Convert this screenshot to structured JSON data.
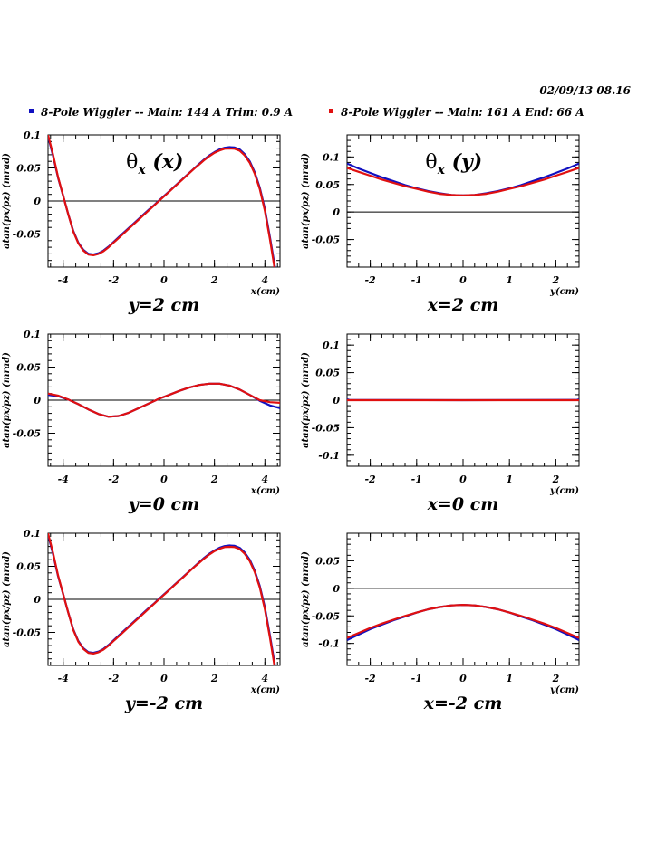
{
  "date": "02/09/13   08.16",
  "legend": [
    {
      "label": "8-Pole Wiggler --  Main: 144 A    Trim: 0.9 A",
      "color": "#1010c0"
    },
    {
      "label": "8-Pole Wiggler --  Main: 161 A    End: 66 A",
      "color": "#e01010"
    }
  ],
  "chart_data": [
    {
      "type": "line",
      "title": "θx (x)",
      "caption": "y=2 cm",
      "xlabel": "x(cm)",
      "ylabel": "atan(px/pz) (mrad)",
      "xlim": [
        -4.6,
        4.6
      ],
      "ylim": [
        -0.1,
        0.1
      ],
      "xticks": [
        -4,
        -2,
        0,
        2,
        4
      ],
      "xticklabels": [
        "-4",
        "-2",
        "0",
        "2",
        "4"
      ],
      "yticks": [
        -0.05,
        0,
        0.05,
        0.1
      ],
      "yticklabels": [
        "-0.05",
        "0",
        "0.05",
        "0.1"
      ],
      "zero_line": true,
      "series": [
        {
          "color": "#1010c0",
          "x": [
            -4.6,
            -4.4,
            -4.2,
            -4,
            -3.8,
            -3.6,
            -3.4,
            -3.2,
            -3,
            -2.8,
            -2.6,
            -2.4,
            -2.2,
            -2,
            -1.8,
            -1.6,
            -1.4,
            -1.2,
            -1,
            -0.8,
            -0.6,
            -0.4,
            -0.2,
            0,
            0.2,
            0.4,
            0.6,
            0.8,
            1,
            1.2,
            1.4,
            1.6,
            1.8,
            2,
            2.2,
            2.4,
            2.6,
            2.8,
            3,
            3.2,
            3.4,
            3.6,
            3.8,
            4,
            4.2,
            4.4,
            4.6
          ],
          "y": [
            0.098,
            0.068,
            0.035,
            0.008,
            -0.02,
            -0.045,
            -0.063,
            -0.074,
            -0.08,
            -0.081,
            -0.079,
            -0.075,
            -0.069,
            -0.062,
            -0.055,
            -0.048,
            -0.041,
            -0.034,
            -0.027,
            -0.02,
            -0.013,
            -0.0065,
            0.0005,
            0.0075,
            0.0145,
            0.0215,
            0.0285,
            0.0355,
            0.0425,
            0.0495,
            0.0565,
            0.063,
            0.069,
            0.074,
            0.078,
            0.0805,
            0.0815,
            0.081,
            0.078,
            0.071,
            0.06,
            0.043,
            0.02,
            -0.012,
            -0.055,
            -0.1,
            -0.15
          ]
        },
        {
          "color": "#e01010",
          "x": [
            -4.6,
            -4.4,
            -4.2,
            -4,
            -3.8,
            -3.6,
            -3.4,
            -3.2,
            -3,
            -2.8,
            -2.6,
            -2.4,
            -2.2,
            -2,
            -1.8,
            -1.6,
            -1.4,
            -1.2,
            -1,
            -0.8,
            -0.6,
            -0.4,
            -0.2,
            0,
            0.2,
            0.4,
            0.6,
            0.8,
            1,
            1.2,
            1.4,
            1.6,
            1.8,
            2,
            2.2,
            2.4,
            2.6,
            2.8,
            3,
            3.2,
            3.4,
            3.6,
            3.8,
            4,
            4.2,
            4.4,
            4.6
          ],
          "y": [
            0.1,
            0.07,
            0.036,
            0.008,
            -0.02,
            -0.046,
            -0.064,
            -0.075,
            -0.081,
            -0.082,
            -0.08,
            -0.076,
            -0.07,
            -0.063,
            -0.056,
            -0.049,
            -0.042,
            -0.035,
            -0.028,
            -0.021,
            -0.014,
            -0.007,
            0,
            0.007,
            0.014,
            0.021,
            0.028,
            0.035,
            0.042,
            0.049,
            0.0555,
            0.062,
            0.068,
            0.073,
            0.0765,
            0.079,
            0.0795,
            0.079,
            0.076,
            0.069,
            0.058,
            0.041,
            0.018,
            -0.015,
            -0.058,
            -0.105,
            -0.155
          ]
        }
      ]
    },
    {
      "type": "line",
      "title": "θx (y)",
      "caption": "x=2 cm",
      "xlabel": "y(cm)",
      "ylabel": "atan(px/pz) (mrad)",
      "xlim": [
        -2.5,
        2.5
      ],
      "ylim": [
        -0.1,
        0.14
      ],
      "xticks": [
        -2,
        -1,
        0,
        1,
        2
      ],
      "xticklabels": [
        "-2",
        "-1",
        "0",
        "1",
        "2"
      ],
      "yticks": [
        -0.05,
        0,
        0.05,
        0.1
      ],
      "yticklabels": [
        "-0.05",
        "0",
        "0.05",
        "0.1"
      ],
      "zero_line": true,
      "series": [
        {
          "color": "#1010c0",
          "x": [
            -2.5,
            -2.25,
            -2,
            -1.75,
            -1.5,
            -1.25,
            -1,
            -0.75,
            -0.5,
            -0.25,
            0,
            0.25,
            0.5,
            0.75,
            1,
            1.25,
            1.5,
            1.75,
            2,
            2.25,
            2.5
          ],
          "y": [
            0.088,
            0.079,
            0.071,
            0.063,
            0.056,
            0.049,
            0.043,
            0.038,
            0.034,
            0.031,
            0.03,
            0.031,
            0.034,
            0.038,
            0.043,
            0.049,
            0.056,
            0.063,
            0.071,
            0.079,
            0.088
          ]
        },
        {
          "color": "#e01010",
          "x": [
            -2.5,
            -2.25,
            -2,
            -1.75,
            -1.5,
            -1.25,
            -1,
            -0.75,
            -0.5,
            -0.25,
            0,
            0.25,
            0.5,
            0.75,
            1,
            1.25,
            1.5,
            1.75,
            2,
            2.25,
            2.5
          ],
          "y": [
            0.08,
            0.073,
            0.066,
            0.059,
            0.053,
            0.047,
            0.042,
            0.037,
            0.033,
            0.031,
            0.03,
            0.031,
            0.033,
            0.037,
            0.042,
            0.047,
            0.053,
            0.059,
            0.066,
            0.073,
            0.08
          ]
        }
      ]
    },
    {
      "type": "line",
      "title": "",
      "caption": "y=0 cm",
      "xlabel": "x(cm)",
      "ylabel": "atan(px/pz) (mrad)",
      "xlim": [
        -4.6,
        4.6
      ],
      "ylim": [
        -0.1,
        0.1
      ],
      "xticks": [
        -4,
        -2,
        0,
        2,
        4
      ],
      "xticklabels": [
        "-4",
        "-2",
        "0",
        "2",
        "4"
      ],
      "yticks": [
        -0.05,
        0,
        0.05,
        0.1
      ],
      "yticklabels": [
        "-0.05",
        "0",
        "0.05",
        "0.1"
      ],
      "zero_line": true,
      "series": [
        {
          "color": "#1010c0",
          "x": [
            -4.6,
            -4.2,
            -3.8,
            -3.4,
            -3,
            -2.6,
            -2.2,
            -1.8,
            -1.4,
            -1,
            -0.6,
            -0.2,
            0.2,
            0.6,
            1,
            1.4,
            1.8,
            2.2,
            2.6,
            3,
            3.4,
            3.8,
            4.2,
            4.6
          ],
          "y": [
            0.008,
            0.006,
            0.001,
            -0.006,
            -0.014,
            -0.021,
            -0.025,
            -0.024,
            -0.019,
            -0.012,
            -0.005,
            0.002,
            0.008,
            0.014,
            0.019,
            0.023,
            0.025,
            0.025,
            0.022,
            0.016,
            0.008,
            -0.001,
            -0.008,
            -0.012
          ]
        },
        {
          "color": "#e01010",
          "x": [
            -4.6,
            -4.2,
            -3.8,
            -3.4,
            -3,
            -2.6,
            -2.2,
            -1.8,
            -1.4,
            -1,
            -0.6,
            -0.2,
            0.2,
            0.6,
            1,
            1.4,
            1.8,
            2.2,
            2.6,
            3,
            3.4,
            3.8,
            4.2,
            4.6
          ],
          "y": [
            0.01,
            0.007,
            0.001,
            -0.006,
            -0.014,
            -0.021,
            -0.025,
            -0.024,
            -0.019,
            -0.012,
            -0.005,
            0.002,
            0.008,
            0.014,
            0.019,
            0.023,
            0.025,
            0.025,
            0.022,
            0.016,
            0.008,
            0,
            -0.003,
            -0.004
          ]
        }
      ]
    },
    {
      "type": "line",
      "title": "",
      "caption": "x=0 cm",
      "xlabel": "y(cm)",
      "ylabel": "atan(px/pz) (mrad)",
      "xlim": [
        -2.5,
        2.5
      ],
      "ylim": [
        -0.12,
        0.12
      ],
      "xticks": [
        -2,
        -1,
        0,
        1,
        2
      ],
      "xticklabels": [
        "-2",
        "-1",
        "0",
        "1",
        "2"
      ],
      "yticks": [
        -0.1,
        -0.05,
        0,
        0.05,
        0.1
      ],
      "yticklabels": [
        "-0.1",
        "-0.05",
        "0",
        "0.05",
        "0.1"
      ],
      "zero_line": true,
      "series": [
        {
          "color": "#1010c0",
          "x": [
            -2.5,
            -2.45,
            0,
            2.45,
            2.5
          ],
          "y": [
            0.0015,
            0.0005,
            0,
            0.0005,
            0.0015
          ]
        },
        {
          "color": "#e01010",
          "x": [
            -2.5,
            0,
            2.5
          ],
          "y": [
            0,
            0,
            0
          ]
        }
      ]
    },
    {
      "type": "line",
      "title": "",
      "caption": "y=-2 cm",
      "xlabel": "x(cm)",
      "ylabel": "atan(px/pz) (mrad)",
      "xlim": [
        -4.6,
        4.6
      ],
      "ylim": [
        -0.1,
        0.1
      ],
      "xticks": [
        -4,
        -2,
        0,
        2,
        4
      ],
      "xticklabels": [
        "-4",
        "-2",
        "0",
        "2",
        "4"
      ],
      "yticks": [
        -0.05,
        0,
        0.05,
        0.1
      ],
      "yticklabels": [
        "-0.05",
        "0",
        "0.05",
        "0.1"
      ],
      "zero_line": true,
      "series": [
        {
          "color": "#1010c0",
          "x": [
            -4.6,
            -4.4,
            -4.2,
            -4,
            -3.8,
            -3.6,
            -3.4,
            -3.2,
            -3,
            -2.8,
            -2.6,
            -2.4,
            -2.2,
            -2,
            -1.8,
            -1.6,
            -1.4,
            -1.2,
            -1,
            -0.8,
            -0.6,
            -0.4,
            -0.2,
            0,
            0.2,
            0.4,
            0.6,
            0.8,
            1,
            1.2,
            1.4,
            1.6,
            1.8,
            2,
            2.2,
            2.4,
            2.6,
            2.8,
            3,
            3.2,
            3.4,
            3.6,
            3.8,
            4,
            4.2,
            4.4,
            4.6
          ],
          "y": [
            0.098,
            0.068,
            0.035,
            0.008,
            -0.02,
            -0.045,
            -0.063,
            -0.074,
            -0.08,
            -0.081,
            -0.079,
            -0.075,
            -0.069,
            -0.062,
            -0.055,
            -0.048,
            -0.041,
            -0.034,
            -0.027,
            -0.02,
            -0.013,
            -0.0065,
            0.0005,
            0.0075,
            0.0145,
            0.0215,
            0.0285,
            0.0355,
            0.0425,
            0.0495,
            0.0565,
            0.063,
            0.069,
            0.074,
            0.078,
            0.0805,
            0.0815,
            0.081,
            0.078,
            0.071,
            0.06,
            0.043,
            0.02,
            -0.012,
            -0.055,
            -0.1,
            -0.15
          ]
        },
        {
          "color": "#e01010",
          "x": [
            -4.6,
            -4.4,
            -4.2,
            -4,
            -3.8,
            -3.6,
            -3.4,
            -3.2,
            -3,
            -2.8,
            -2.6,
            -2.4,
            -2.2,
            -2,
            -1.8,
            -1.6,
            -1.4,
            -1.2,
            -1,
            -0.8,
            -0.6,
            -0.4,
            -0.2,
            0,
            0.2,
            0.4,
            0.6,
            0.8,
            1,
            1.2,
            1.4,
            1.6,
            1.8,
            2,
            2.2,
            2.4,
            2.6,
            2.8,
            3,
            3.2,
            3.4,
            3.6,
            3.8,
            4,
            4.2,
            4.4,
            4.6
          ],
          "y": [
            0.1,
            0.07,
            0.036,
            0.008,
            -0.02,
            -0.046,
            -0.064,
            -0.075,
            -0.081,
            -0.082,
            -0.08,
            -0.076,
            -0.07,
            -0.063,
            -0.056,
            -0.049,
            -0.042,
            -0.035,
            -0.028,
            -0.021,
            -0.014,
            -0.007,
            0,
            0.007,
            0.014,
            0.021,
            0.028,
            0.035,
            0.042,
            0.049,
            0.0555,
            0.062,
            0.068,
            0.073,
            0.0765,
            0.079,
            0.0795,
            0.079,
            0.076,
            0.069,
            0.058,
            0.041,
            0.018,
            -0.015,
            -0.058,
            -0.105,
            -0.155
          ]
        }
      ]
    },
    {
      "type": "line",
      "title": "",
      "caption": "x=-2 cm",
      "xlabel": "y(cm)",
      "ylabel": "atan(px/pz) (mrad)",
      "xlim": [
        -2.5,
        2.5
      ],
      "ylim": [
        -0.14,
        0.1
      ],
      "xticks": [
        -2,
        -1,
        0,
        1,
        2
      ],
      "xticklabels": [
        "-2",
        "-1",
        "0",
        "1",
        "2"
      ],
      "yticks": [
        -0.1,
        -0.05,
        0,
        0.05
      ],
      "yticklabels": [
        "-0.1",
        "-0.05",
        "0",
        "0.05"
      ],
      "zero_line": true,
      "series": [
        {
          "color": "#1010c0",
          "x": [
            -2.5,
            -2.25,
            -2,
            -1.75,
            -1.5,
            -1.25,
            -1,
            -0.75,
            -0.5,
            -0.25,
            0,
            0.25,
            0.5,
            0.75,
            1,
            1.25,
            1.5,
            1.75,
            2,
            2.25,
            2.5
          ],
          "y": [
            -0.094,
            -0.084,
            -0.074,
            -0.066,
            -0.058,
            -0.051,
            -0.044,
            -0.038,
            -0.034,
            -0.031,
            -0.03,
            -0.031,
            -0.034,
            -0.038,
            -0.044,
            -0.051,
            -0.058,
            -0.066,
            -0.074,
            -0.084,
            -0.094
          ]
        },
        {
          "color": "#e01010",
          "x": [
            -2.5,
            -2.25,
            -2,
            -1.75,
            -1.5,
            -1.25,
            -1,
            -0.75,
            -0.5,
            -0.25,
            0,
            0.25,
            0.5,
            0.75,
            1,
            1.25,
            1.5,
            1.75,
            2,
            2.25,
            2.5
          ],
          "y": [
            -0.09,
            -0.081,
            -0.072,
            -0.064,
            -0.057,
            -0.05,
            -0.044,
            -0.038,
            -0.034,
            -0.031,
            -0.03,
            -0.031,
            -0.034,
            -0.038,
            -0.044,
            -0.05,
            -0.057,
            -0.064,
            -0.072,
            -0.081,
            -0.09
          ]
        }
      ]
    }
  ]
}
